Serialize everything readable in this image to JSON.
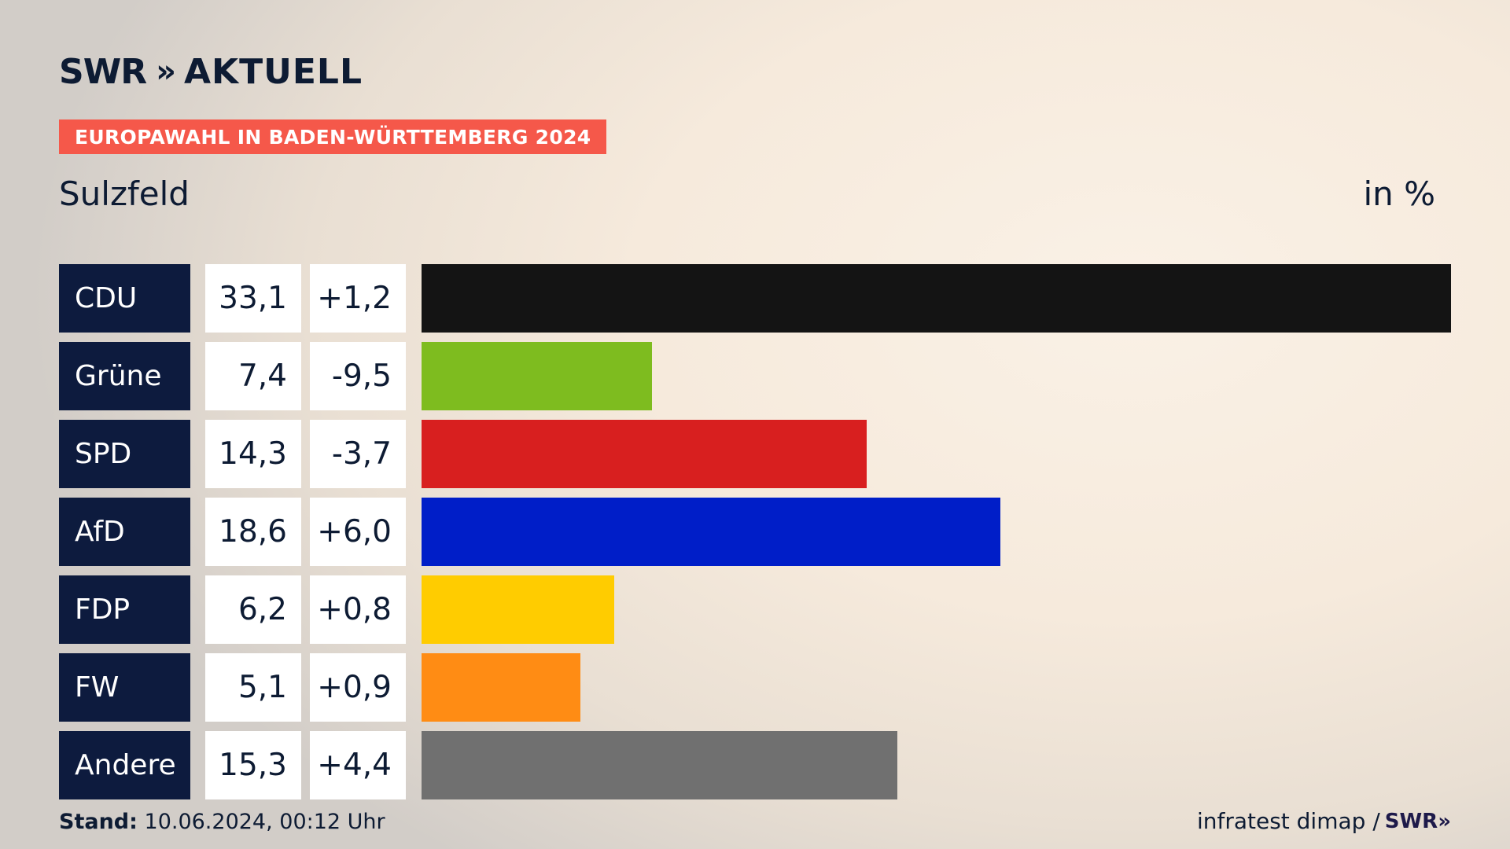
{
  "header": {
    "brand": "SWR",
    "brand_chevrons": "»",
    "brand_suffix": "AKTUELL",
    "tag": "EUROPAWAHL IN BADEN-WÜRTTEMBERG 2024",
    "place": "Sulzfeld",
    "unit": "in %"
  },
  "footer": {
    "stand_label": "Stand:",
    "stand_value": "10.06.2024, 00:12 Uhr",
    "source": "infratest dimap /",
    "source_brand": "SWR»"
  },
  "chart_data": {
    "type": "bar",
    "orientation": "horizontal",
    "categories": [
      "CDU",
      "Grüne",
      "SPD",
      "AfD",
      "FDP",
      "FW",
      "Andere"
    ],
    "values": [
      33.1,
      7.4,
      14.3,
      18.6,
      6.2,
      5.1,
      15.3
    ],
    "value_labels": [
      "33,1",
      "7,4",
      "14,3",
      "18,6",
      "6,2",
      "5,1",
      "15,3"
    ],
    "diff_labels": [
      "+1,2",
      "-9,5",
      "-3,7",
      "+6,0",
      "+0,8",
      "+0,9",
      "+4,4"
    ],
    "colors": [
      "#141414",
      "#7ebc1f",
      "#d81f1f",
      "#001ec8",
      "#ffcc00",
      "#ff8c14",
      "#707070"
    ],
    "xlim": [
      0,
      33.1
    ],
    "grid": false
  }
}
